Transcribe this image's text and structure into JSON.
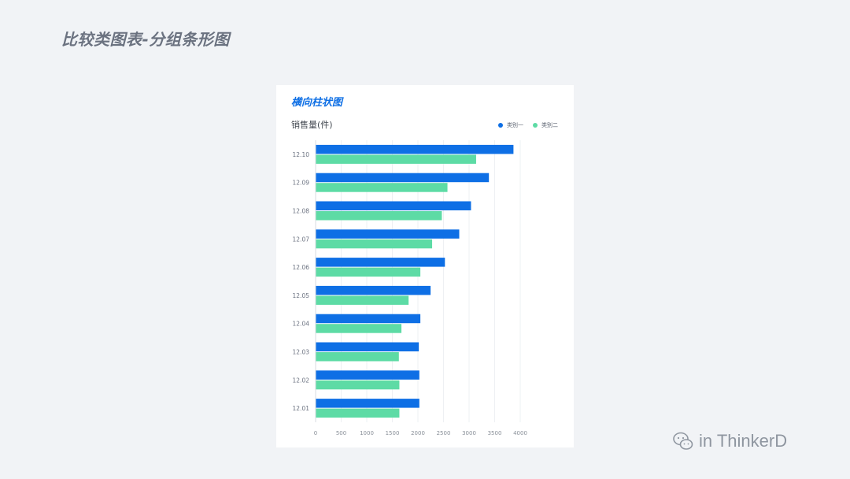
{
  "page": {
    "title": "比较类图表-分组条形图",
    "watermark": "in ThinkerD"
  },
  "card": {
    "title": "横向柱状图",
    "unit_label": "销售量(件)"
  },
  "colors": {
    "series1": "#0e6fe5",
    "series2": "#5ddba5"
  },
  "chart_data": {
    "type": "bar",
    "orientation": "horizontal",
    "title": "横向柱状图",
    "ylabel": "销售量(件)",
    "categories": [
      "12.10",
      "12.09",
      "12.08",
      "12.07",
      "12.06",
      "12.05",
      "12.04",
      "12.03",
      "12.02",
      "12.01"
    ],
    "series": [
      {
        "name": "类别一",
        "values": [
          3860,
          3380,
          3030,
          2800,
          2520,
          2240,
          2040,
          2010,
          2020,
          2020
        ]
      },
      {
        "name": "类别二",
        "values": [
          3130,
          2570,
          2460,
          2270,
          2040,
          1810,
          1670,
          1620,
          1630,
          1630
        ]
      }
    ],
    "xlim": [
      0,
      4000
    ],
    "xticks": [
      "0",
      "500",
      "1000",
      "1500",
      "2000",
      "2500",
      "3000",
      "3500",
      "4000"
    ],
    "grid": true,
    "legend": "top-right"
  }
}
